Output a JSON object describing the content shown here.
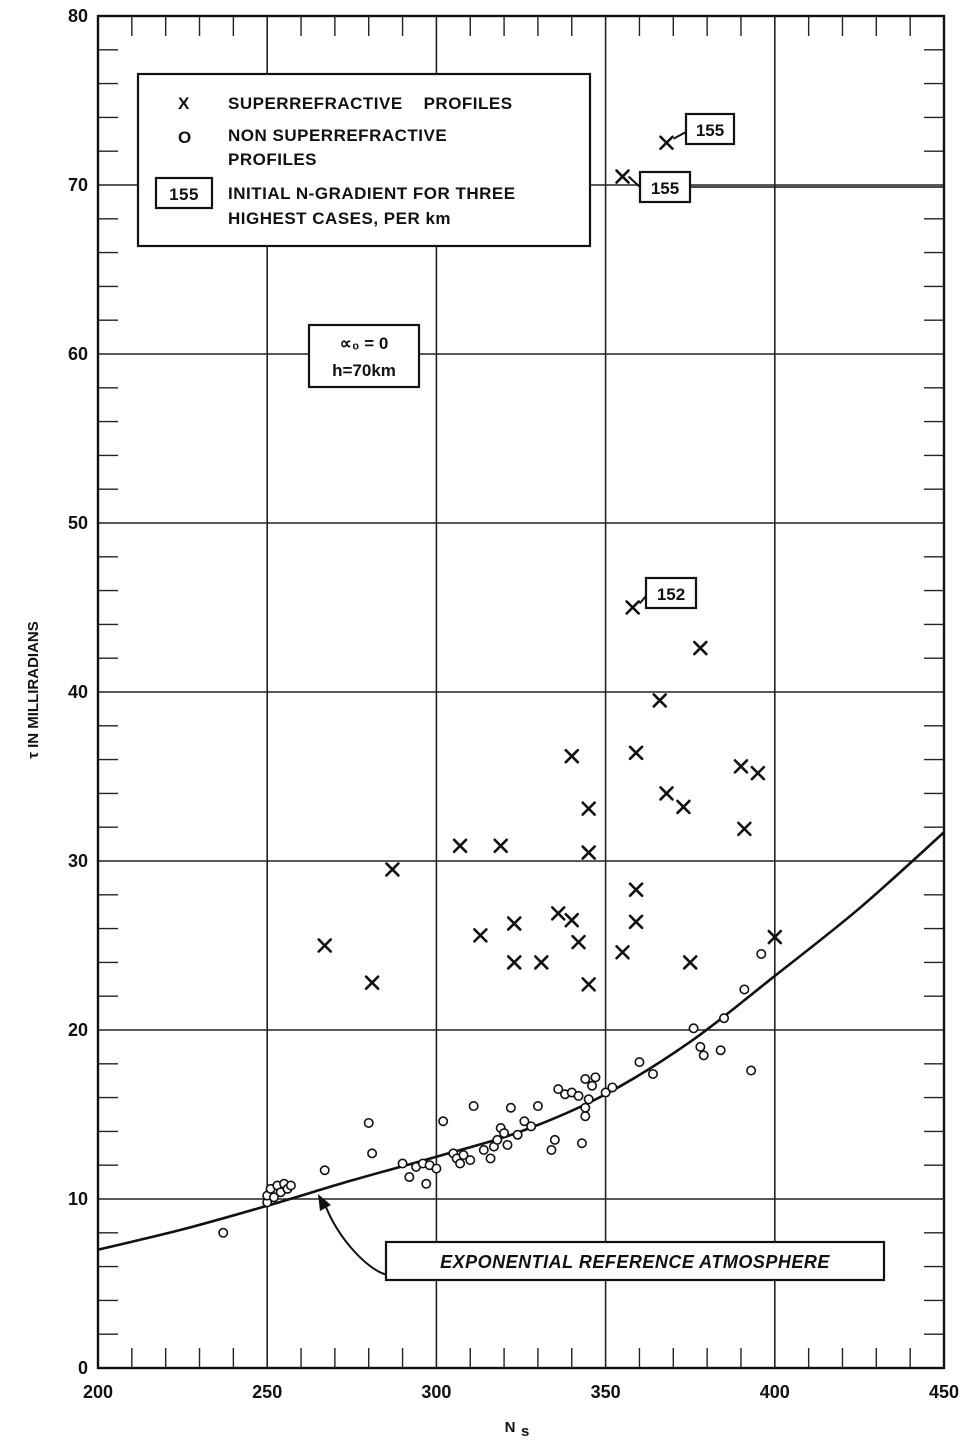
{
  "chart_data": {
    "type": "scatter",
    "xlabel": "N",
    "xlabel_sub": "s",
    "ylabel": "τ IN MILLIRADIANS",
    "xlim": [
      200,
      450
    ],
    "ylim": [
      0,
      80
    ],
    "x_ticks": [
      "200",
      "250",
      "300",
      "350",
      "400",
      "450"
    ],
    "y_ticks": [
      "0",
      "10",
      "20",
      "30",
      "40",
      "50",
      "60",
      "70",
      "80"
    ],
    "grid": true,
    "legend": {
      "placement": "top-left",
      "x_symbol": "X",
      "x_label": "SUPERREFRACTIVE    PROFILES",
      "o_symbol": "O",
      "o_label_line1": "NON SUPERREFRACTIVE",
      "o_label_line2": "PROFILES",
      "box_symbol": "155",
      "box_label_line1": "INITIAL N-GRADIENT FOR THREE",
      "box_label_line2": "HIGHEST CASES, PER km"
    },
    "parameters": {
      "line1": "∝₀ = 0",
      "line2": "h=70km"
    },
    "callouts": [
      {
        "label": "155",
        "x": 368,
        "y": 72.5
      },
      {
        "label": "155",
        "x": 355,
        "y": 70.5
      },
      {
        "label": "152",
        "x": 358,
        "y": 45.0
      }
    ],
    "curve_label": "EXPONENTIAL REFERENCE ATMOSPHERE",
    "series": [
      {
        "name": "SUPERREFRACTIVE PROFILES",
        "marker": "x",
        "points": [
          [
            267,
            25.0
          ],
          [
            281,
            22.8
          ],
          [
            287,
            29.5
          ],
          [
            307,
            30.9
          ],
          [
            313,
            25.6
          ],
          [
            319,
            30.9
          ],
          [
            323,
            26.3
          ],
          [
            323,
            24.0
          ],
          [
            331,
            24.0
          ],
          [
            336,
            26.9
          ],
          [
            340,
            36.2
          ],
          [
            340,
            26.5
          ],
          [
            342,
            25.2
          ],
          [
            345,
            22.7
          ],
          [
            345,
            30.5
          ],
          [
            345,
            33.1
          ],
          [
            355,
            24.6
          ],
          [
            355,
            70.5
          ],
          [
            358,
            45.0
          ],
          [
            359,
            36.4
          ],
          [
            359,
            28.3
          ],
          [
            359,
            26.4
          ],
          [
            366,
            39.5
          ],
          [
            368,
            34.0
          ],
          [
            368,
            72.5
          ],
          [
            373,
            33.2
          ],
          [
            375,
            24.0
          ],
          [
            378,
            42.6
          ],
          [
            390,
            35.6
          ],
          [
            391,
            31.9
          ],
          [
            395,
            35.2
          ],
          [
            400,
            25.5
          ]
        ]
      },
      {
        "name": "NON SUPERREFRACTIVE PROFILES",
        "marker": "o",
        "points": [
          [
            237,
            8.0
          ],
          [
            250,
            9.8
          ],
          [
            250,
            10.2
          ],
          [
            251,
            10.6
          ],
          [
            252,
            10.1
          ],
          [
            253,
            10.8
          ],
          [
            254,
            10.4
          ],
          [
            255,
            10.9
          ],
          [
            256,
            10.6
          ],
          [
            257,
            10.8
          ],
          [
            267,
            11.7
          ],
          [
            280,
            14.5
          ],
          [
            281,
            12.7
          ],
          [
            290,
            12.1
          ],
          [
            292,
            11.3
          ],
          [
            294,
            11.9
          ],
          [
            296,
            12.1
          ],
          [
            297,
            10.9
          ],
          [
            298,
            12.0
          ],
          [
            300,
            11.8
          ],
          [
            302,
            14.6
          ],
          [
            305,
            12.7
          ],
          [
            306,
            12.4
          ],
          [
            307,
            12.1
          ],
          [
            308,
            12.6
          ],
          [
            310,
            12.3
          ],
          [
            311,
            15.5
          ],
          [
            314,
            12.9
          ],
          [
            316,
            12.4
          ],
          [
            317,
            13.1
          ],
          [
            318,
            13.5
          ],
          [
            319,
            14.2
          ],
          [
            320,
            13.9
          ],
          [
            321,
            13.2
          ],
          [
            322,
            15.4
          ],
          [
            324,
            13.8
          ],
          [
            326,
            14.6
          ],
          [
            328,
            14.3
          ],
          [
            330,
            15.5
          ],
          [
            334,
            12.9
          ],
          [
            335,
            13.5
          ],
          [
            336,
            16.5
          ],
          [
            338,
            16.2
          ],
          [
            340,
            16.3
          ],
          [
            342,
            16.1
          ],
          [
            343,
            13.3
          ],
          [
            344,
            14.9
          ],
          [
            344,
            15.4
          ],
          [
            344,
            17.1
          ],
          [
            345,
            15.9
          ],
          [
            346,
            16.7
          ],
          [
            347,
            17.2
          ],
          [
            350,
            16.3
          ],
          [
            352,
            16.6
          ],
          [
            360,
            18.1
          ],
          [
            364,
            17.4
          ],
          [
            376,
            20.1
          ],
          [
            378,
            19.0
          ],
          [
            379,
            18.5
          ],
          [
            384,
            18.8
          ],
          [
            385,
            20.7
          ],
          [
            391,
            22.4
          ],
          [
            393,
            17.6
          ],
          [
            396,
            24.5
          ]
        ]
      },
      {
        "name": "EXPONENTIAL REFERENCE ATMOSPHERE",
        "marker": "line",
        "points": [
          [
            200,
            7.0
          ],
          [
            225,
            8.2
          ],
          [
            250,
            9.6
          ],
          [
            275,
            11.1
          ],
          [
            300,
            12.5
          ],
          [
            325,
            14.0
          ],
          [
            350,
            16.2
          ],
          [
            375,
            19.3
          ],
          [
            400,
            23.2
          ],
          [
            425,
            27.2
          ],
          [
            450,
            31.7
          ]
        ]
      }
    ]
  }
}
